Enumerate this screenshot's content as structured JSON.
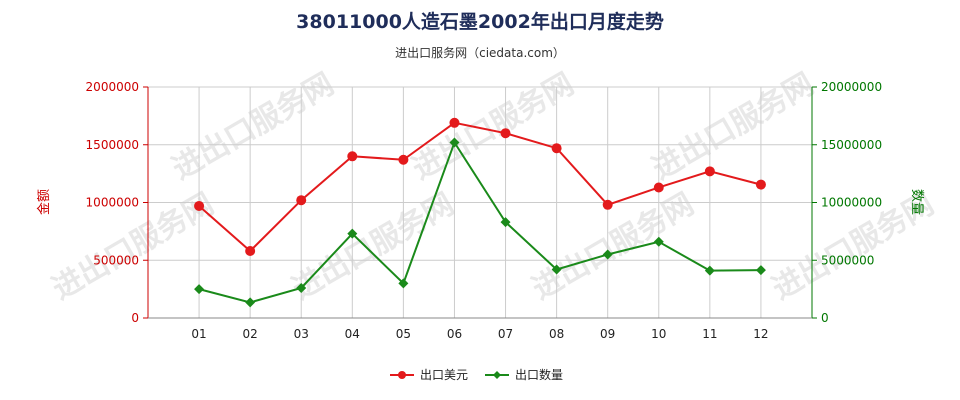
{
  "chart_data": {
    "type": "line",
    "title": "38011000人造石墨2002年出口月度走势",
    "subtitle": "进出口服务网（ciedata.com）",
    "categories": [
      "01",
      "02",
      "03",
      "04",
      "05",
      "06",
      "07",
      "08",
      "09",
      "10",
      "11",
      "12"
    ],
    "y_left": {
      "label": "金额",
      "ylim": [
        0,
        2000000
      ],
      "ticks": [
        0,
        500000,
        1000000,
        1500000,
        2000000
      ],
      "tick_labels": [
        "0",
        "500000",
        "1000000",
        "1500000",
        "2000000"
      ],
      "color": "#cc0000"
    },
    "y_right": {
      "label": "数量",
      "ylim": [
        0,
        20000000
      ],
      "ticks": [
        0,
        5000000,
        10000000,
        15000000,
        20000000
      ],
      "tick_labels": [
        "0",
        "5000000",
        "10000000",
        "15000000",
        "20000000"
      ],
      "color": "#007700"
    },
    "grid": true,
    "legend_placement": "bottom",
    "series": [
      {
        "name": "出口美元",
        "axis": "left",
        "color": "#e31a1c",
        "marker": "circle",
        "values": [
          970000,
          580000,
          1020000,
          1400000,
          1370000,
          1690000,
          1600000,
          1470000,
          980000,
          1130000,
          1270000,
          1155000
        ]
      },
      {
        "name": "出口数量",
        "axis": "right",
        "color": "#1a8a1a",
        "marker": "diamond",
        "values": [
          2500000,
          1350000,
          2600000,
          7300000,
          3000000,
          15200000,
          8300000,
          4200000,
          5500000,
          6600000,
          4100000,
          4150000
        ]
      }
    ],
    "watermark": "进出口服务网"
  }
}
